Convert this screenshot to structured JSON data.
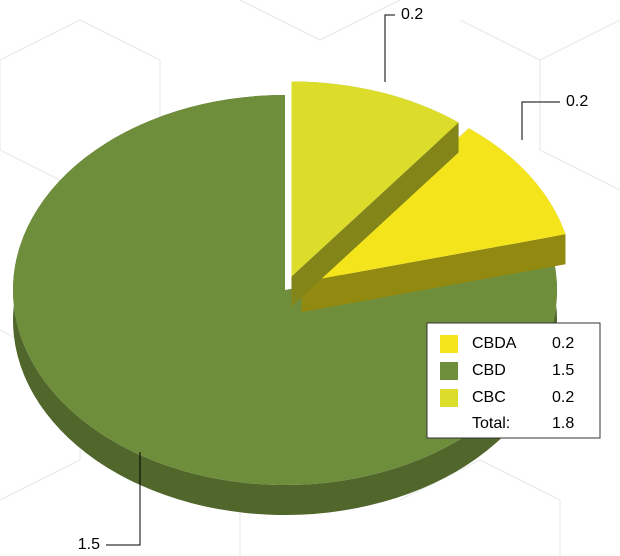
{
  "chart_data": {
    "type": "pie",
    "categories": [
      "CBDA",
      "CBD",
      "CBC"
    ],
    "values": [
      0.2,
      1.5,
      0.2
    ],
    "colors": [
      "#f3e41c",
      "#6f8e3c",
      "#dbdd2a"
    ],
    "total_label": "Total:",
    "total": 1.8,
    "legend": "lower right"
  }
}
